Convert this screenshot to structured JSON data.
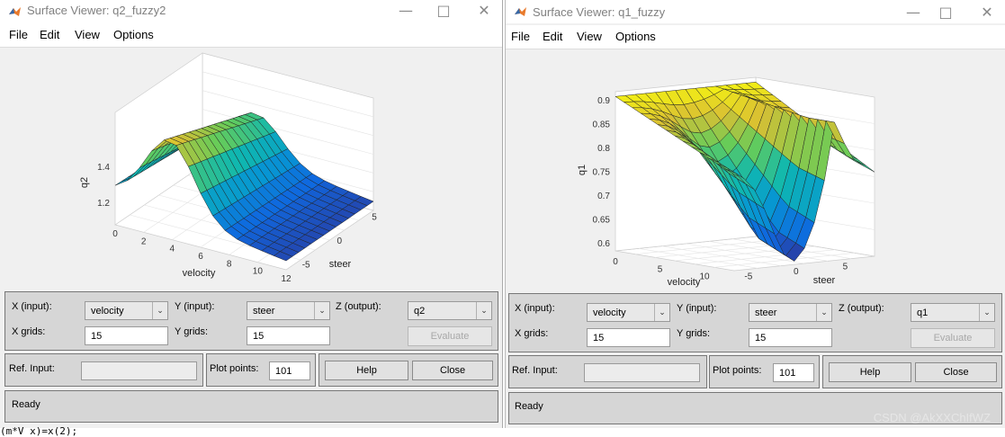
{
  "windows": [
    {
      "id": "left",
      "title": "Surface Viewer: q2_fuzzy2",
      "menu": [
        "File",
        "Edit",
        "View",
        "Options"
      ],
      "x_input_label": "X (input):",
      "x_input_value": "velocity",
      "y_input_label": "Y (input):",
      "y_input_value": "steer",
      "z_output_label": "Z (output):",
      "z_output_value": "q2",
      "x_grids_label": "X grids:",
      "x_grids_value": "15",
      "y_grids_label": "Y grids:",
      "y_grids_value": "15",
      "evaluate_label": "Evaluate",
      "ref_input_label": "Ref. Input:",
      "plot_points_label": "Plot points:",
      "plot_points_value": "101",
      "help_label": "Help",
      "close_label": "Close",
      "status": "Ready",
      "plot": {
        "xlabel": "velocity",
        "ylabel": "steer",
        "zlabel": "q2",
        "xticks": [
          "0",
          "2",
          "4",
          "6",
          "8",
          "10",
          "12"
        ],
        "yticks": [
          "-5",
          "0",
          "5"
        ],
        "zticks": [
          "1.2",
          "1.4"
        ]
      }
    },
    {
      "id": "right",
      "title": "Surface Viewer: q1_fuzzy",
      "menu": [
        "File",
        "Edit",
        "View",
        "Options"
      ],
      "x_input_label": "X (input):",
      "x_input_value": "velocity",
      "y_input_label": "Y (input):",
      "y_input_value": "steer",
      "z_output_label": "Z (output):",
      "z_output_value": "q1",
      "x_grids_label": "X grids:",
      "x_grids_value": "15",
      "y_grids_label": "Y grids:",
      "y_grids_value": "15",
      "evaluate_label": "Evaluate",
      "ref_input_label": "Ref. Input:",
      "plot_points_label": "Plot points:",
      "plot_points_value": "101",
      "help_label": "Help",
      "close_label": "Close",
      "status": "Ready",
      "plot": {
        "xlabel": "velocity",
        "ylabel": "steer",
        "zlabel": "q1",
        "xticks": [
          "0",
          "5",
          "10"
        ],
        "yticks": [
          "-5",
          "0",
          "5"
        ],
        "zticks": [
          "0.6",
          "0.65",
          "0.7",
          "0.75",
          "0.8",
          "0.85",
          "0.9"
        ]
      }
    }
  ],
  "watermark": "CSDN @AkXXChIfWZ",
  "code_fragment": "(m*V x)=x(2);"
}
